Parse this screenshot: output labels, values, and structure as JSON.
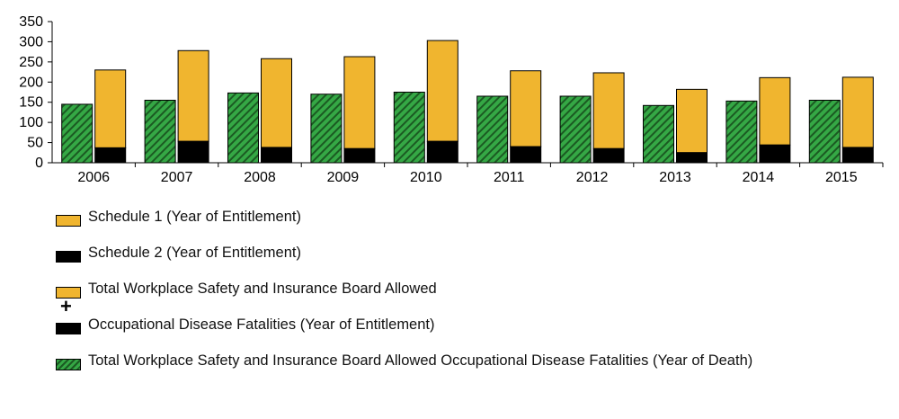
{
  "chart_data": {
    "type": "bar",
    "categories": [
      "2006",
      "2007",
      "2008",
      "2009",
      "2010",
      "2011",
      "2012",
      "2013",
      "2014",
      "2015"
    ],
    "series": [
      {
        "name": "Total Workplace Safety and Insurance Board Allowed Occupational Disease Fatalities (Year of Death)",
        "values": [
          145,
          155,
          173,
          170,
          175,
          165,
          165,
          142,
          153,
          155
        ]
      },
      {
        "name": "Schedule 1 (Year of Entitlement)",
        "values": [
          193,
          225,
          220,
          228,
          250,
          188,
          188,
          157,
          167,
          174
        ]
      },
      {
        "name": "Schedule 2  (Year of Entitlement)",
        "values": [
          37,
          53,
          38,
          35,
          53,
          40,
          35,
          25,
          44,
          38
        ]
      }
    ],
    "stacked_group": "Total Workplace Safety and Insurance Board Allowed Occupational Disease Fatalities (Year of Entitlement)",
    "ylim": [
      0,
      350
    ],
    "yticks": [
      "0",
      "50",
      "100",
      "150",
      "200",
      "250",
      "300",
      "350"
    ],
    "grid": false,
    "legend_position": "bottom",
    "colors": {
      "schedule1": "#F0B52F",
      "schedule2": "#000000",
      "green_light": "#35a845",
      "green_dark": "#1b5a22"
    }
  },
  "legend": {
    "items": [
      {
        "label": "Schedule 1 (Year of Entitlement)",
        "swatch": "yellow"
      },
      {
        "label": "Schedule 2  (Year of Entitlement)",
        "swatch": "black"
      },
      {
        "label": "Total Workplace Safety and Insurance Board Allowed",
        "swatch": "yellow"
      },
      {
        "label": "Occupational Disease Fatalities (Year of Entitlement)",
        "swatch": "black"
      },
      {
        "label": "Total Workplace Safety and Insurance Board Allowed Occupational Disease Fatalities (Year of Death)",
        "swatch": "green"
      }
    ],
    "plus_symbol": "+"
  }
}
